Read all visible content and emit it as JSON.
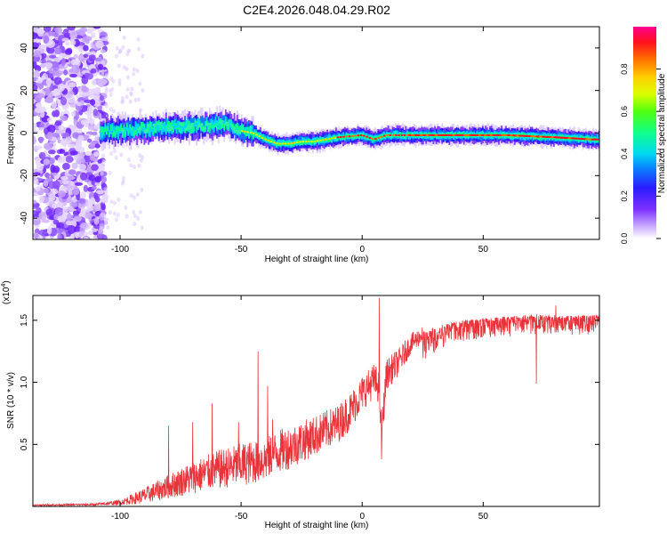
{
  "title": "C2E4.2026.048.04.29.R02",
  "colors": {
    "snr_line": "#e8333a",
    "frame": "#000000",
    "background": "#ffffff"
  },
  "chart_data": [
    {
      "type": "heatmap",
      "name": "spectrogram",
      "xlabel": "Height of straight line (km)",
      "ylabel": "Frequency (Hz)",
      "xlim": [
        -136,
        98
      ],
      "ylim": [
        -50,
        50
      ],
      "xticks": [
        -100,
        -50,
        0,
        50
      ],
      "yticks": [
        -40,
        -20,
        0,
        20,
        40
      ],
      "ridge": {
        "description_points_x": [
          -108,
          -100,
          -90,
          -80,
          -70,
          -60,
          -55,
          -50,
          -45,
          -40,
          -35,
          -30,
          -25,
          -20,
          -15,
          -10,
          0,
          5,
          10,
          20,
          40,
          60,
          80,
          95
        ],
        "frequency_hz": [
          1,
          1,
          2,
          3,
          3,
          4,
          4,
          1,
          0,
          -3,
          -5,
          -5,
          -4,
          -4,
          -3,
          -2,
          -1,
          -3,
          -1,
          -1,
          -1,
          -1,
          -2,
          -3
        ]
      },
      "colorbar": {
        "label": "Normalized spectral amplitude",
        "range": [
          0,
          1
        ],
        "ticks": [
          {
            "value": 0.0,
            "label": "0.0"
          },
          {
            "value": 0.2,
            "label": "0.2"
          },
          {
            "value": 0.4,
            "label": "0.4"
          },
          {
            "value": 0.6,
            "label": "0.6"
          },
          {
            "value": 0.8,
            "label": "0.8"
          }
        ]
      }
    },
    {
      "type": "line",
      "name": "snr",
      "xlabel": "Height of straight line (km)",
      "ylabel": "SNR (10 * v/v)",
      "exponent_label": "(x10",
      "exponent_sup": "4",
      "exponent_close": ")",
      "xlim": [
        -136,
        98
      ],
      "ylim": [
        0,
        17000
      ],
      "xticks": [
        -100,
        -50,
        0,
        50
      ],
      "yticks": [
        {
          "value": 5000,
          "label": "0.5"
        },
        {
          "value": 10000,
          "label": "1.0"
        },
        {
          "value": 15000,
          "label": "1.5"
        }
      ],
      "envelope": {
        "x": [
          -136,
          -110,
          -100,
          -90,
          -80,
          -70,
          -60,
          -50,
          -40,
          -35,
          -30,
          -20,
          -10,
          -5,
          0,
          5,
          7,
          8,
          10,
          15,
          20,
          25,
          30,
          40,
          50,
          60,
          70,
          80,
          90,
          98
        ],
        "baseline": [
          100,
          150,
          300,
          800,
          1500,
          2200,
          2800,
          3200,
          3600,
          4200,
          4600,
          5500,
          6500,
          7500,
          9000,
          10000,
          9500,
          5500,
          10500,
          11500,
          13000,
          13800,
          14200,
          14800,
          15000,
          15100,
          15300,
          15200,
          15200,
          15300
        ],
        "noise": [
          80,
          120,
          300,
          900,
          1400,
          1900,
          2200,
          2500,
          2500,
          2500,
          2500,
          2300,
          2200,
          2200,
          2000,
          2000,
          2000,
          2000,
          1800,
          1600,
          1200,
          1000,
          900,
          800,
          700,
          700,
          700,
          700,
          700,
          700
        ]
      },
      "peaks": [
        {
          "x": -80,
          "y": 6500
        },
        {
          "x": -70,
          "y": 6800
        },
        {
          "x": -62,
          "y": 8300
        },
        {
          "x": -51,
          "y": 6800
        },
        {
          "x": -43,
          "y": 12500
        },
        {
          "x": -39,
          "y": 9700
        },
        {
          "x": -37,
          "y": 7000
        },
        {
          "x": 7,
          "y": 16800
        },
        {
          "x": 8,
          "y": 3800
        },
        {
          "x": 80,
          "y": 16200
        },
        {
          "x": 72,
          "y": 9900
        }
      ]
    }
  ]
}
